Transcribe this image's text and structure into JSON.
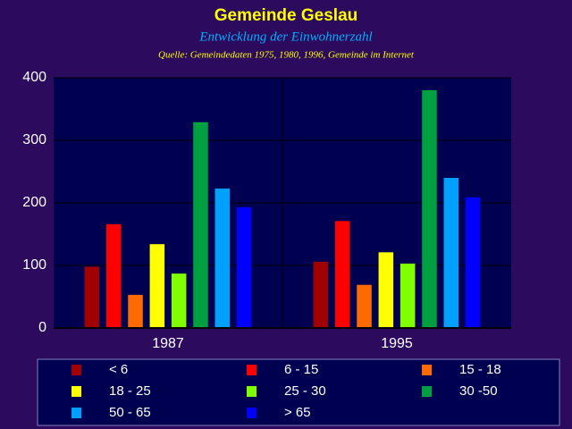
{
  "chart_data": {
    "type": "bar",
    "title": "Gemeinde Geslau",
    "subtitle": "Entwicklung der Einwohnerzahl",
    "source": "Quelle: Gemeindedaten 1975, 1980, 1996, Gemeinde im Internet",
    "categories": [
      "1987",
      "1995"
    ],
    "series": [
      {
        "name": "< 6",
        "color": "#a00000",
        "values": [
          98,
          106
        ]
      },
      {
        "name": "6 - 15",
        "color": "#ff0000",
        "values": [
          166,
          171
        ]
      },
      {
        "name": "15 - 18",
        "color": "#ff6a00",
        "values": [
          53,
          69
        ]
      },
      {
        "name": "18 - 25",
        "color": "#ffff00",
        "values": [
          134,
          121
        ]
      },
      {
        "name": "25 - 30",
        "color": "#80ff00",
        "values": [
          87,
          103
        ]
      },
      {
        "name": "30 -50",
        "color": "#00a040",
        "values": [
          329,
          380
        ]
      },
      {
        "name": "50 - 65",
        "color": "#00a0ff",
        "values": [
          223,
          240
        ]
      },
      {
        "name": "> 65",
        "color": "#0000ff",
        "values": [
          193,
          209
        ]
      }
    ],
    "ylim": [
      0,
      400
    ],
    "yticks": [
      0,
      100,
      200,
      300,
      400
    ],
    "grid": true
  }
}
